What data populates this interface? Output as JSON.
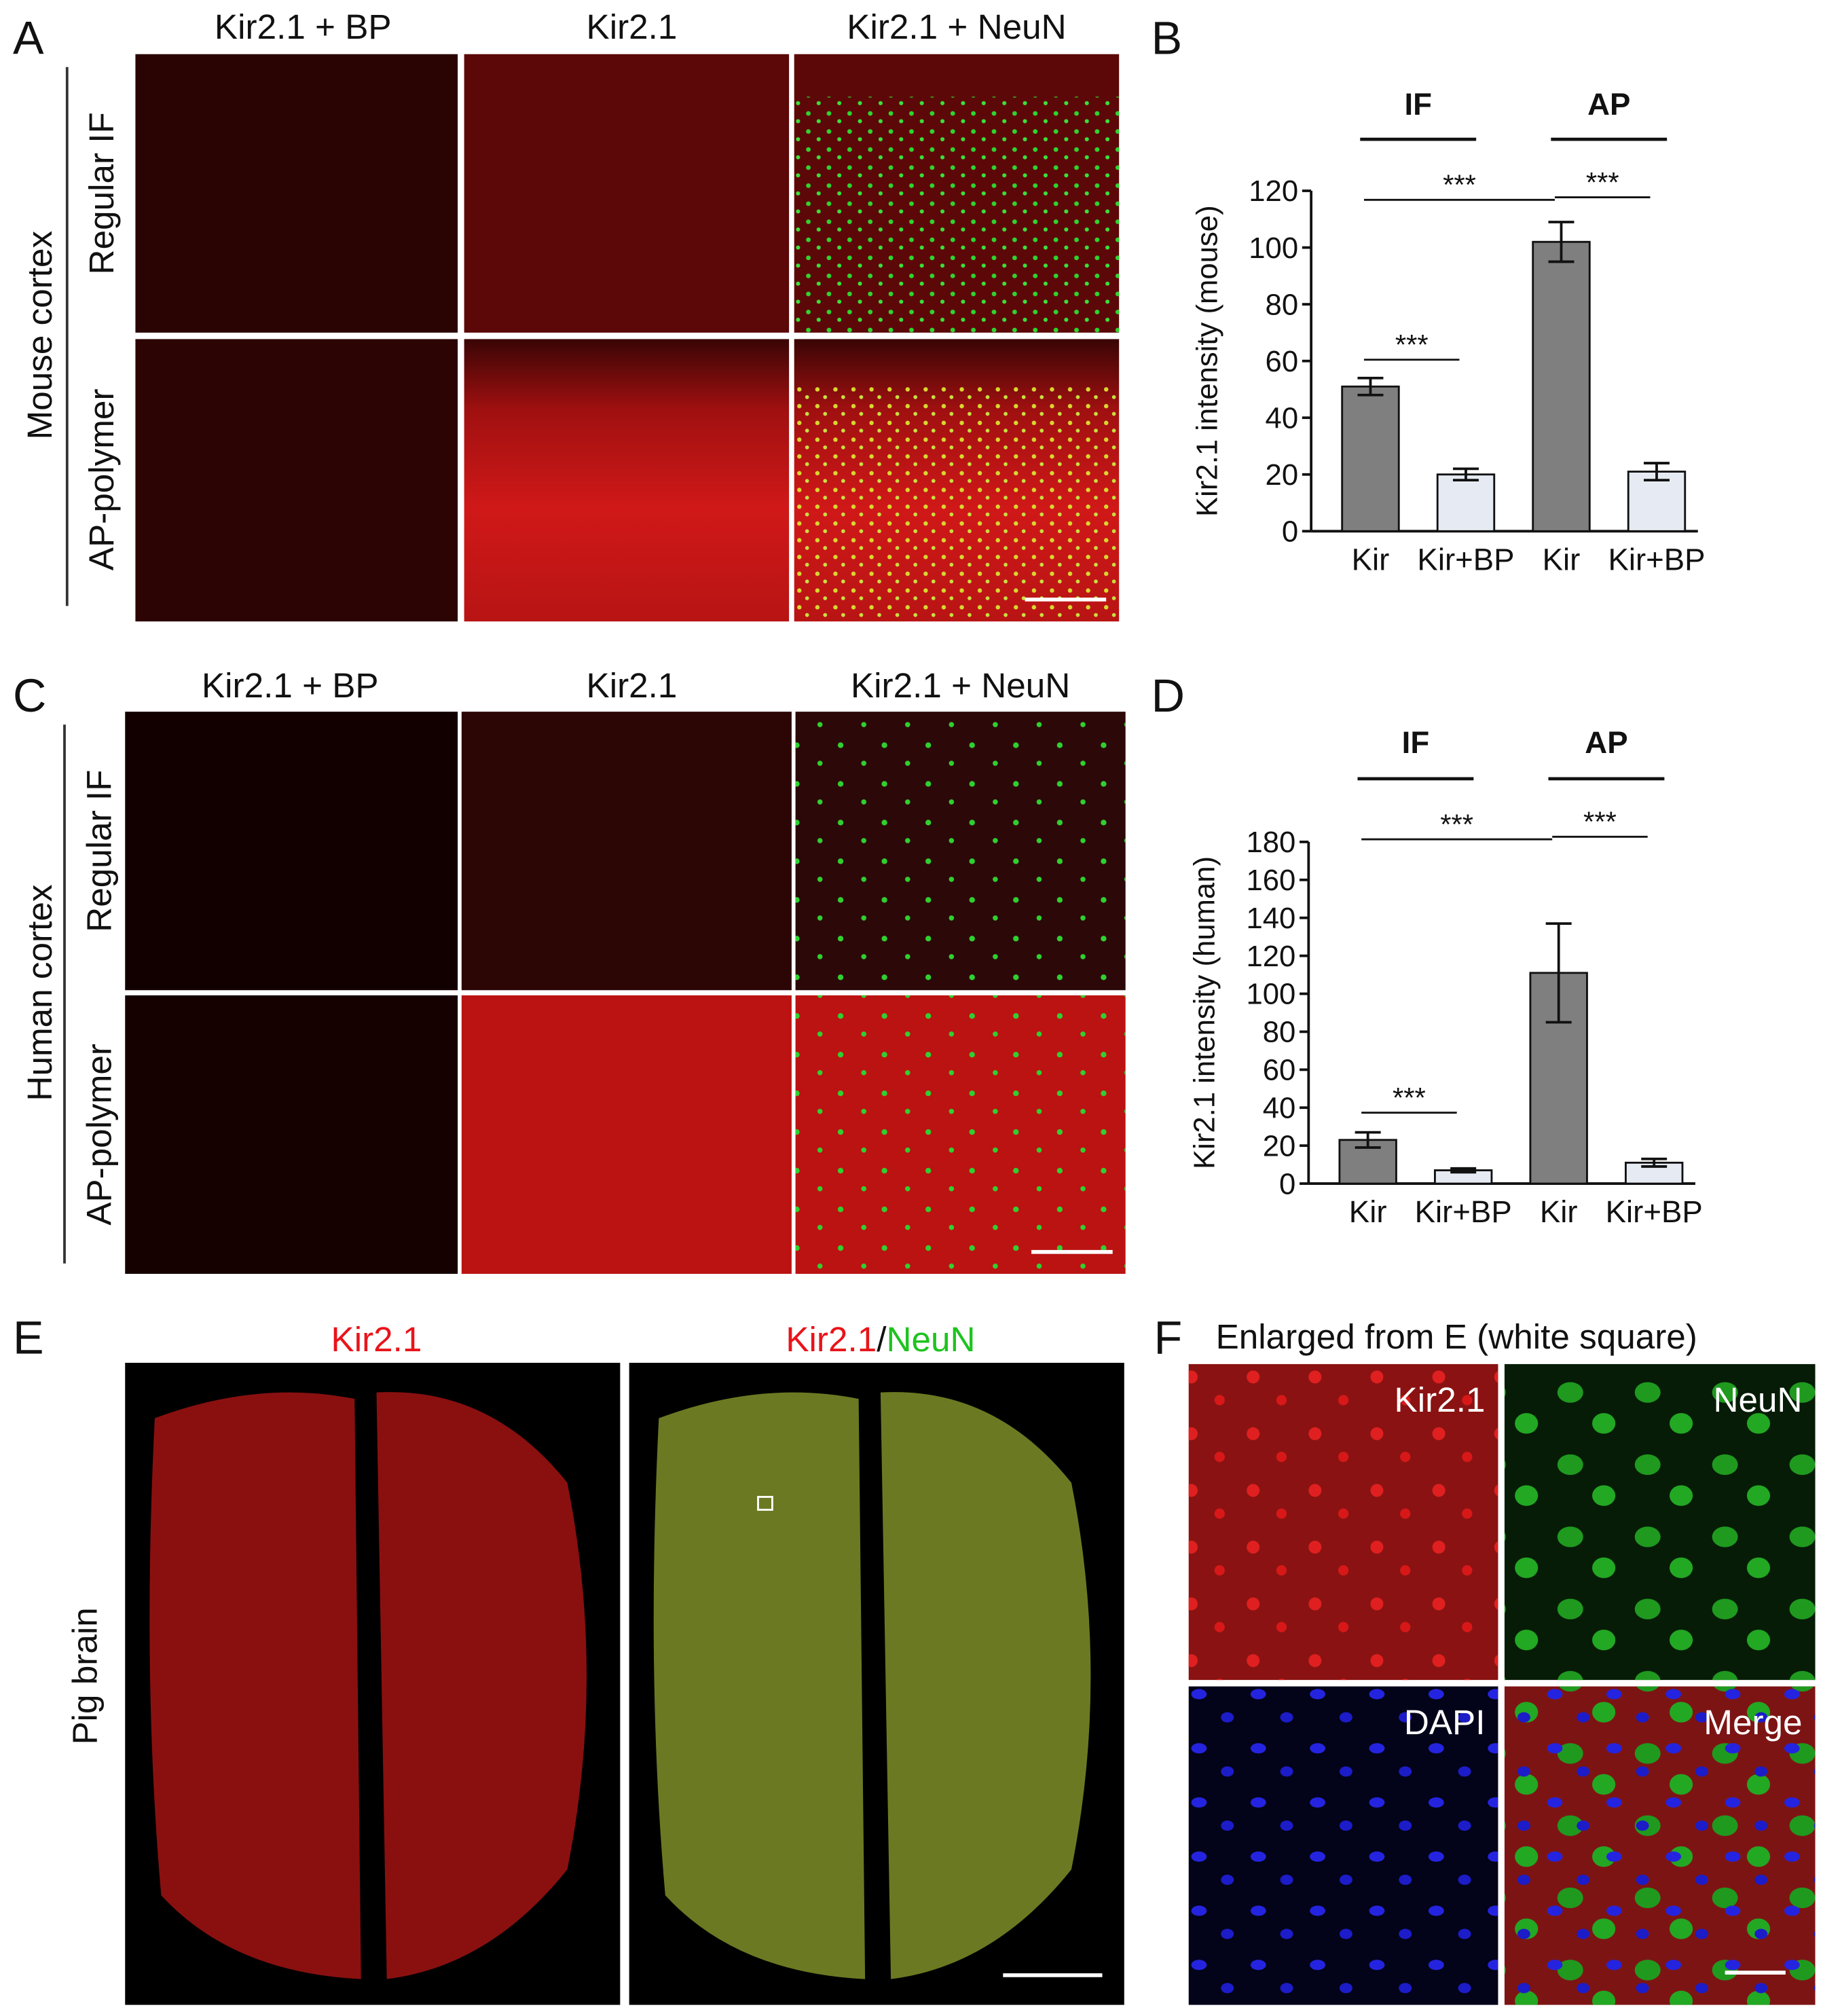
{
  "panel_A": {
    "letter": "A",
    "columns": [
      "Kir2.1 + BP",
      "Kir2.1",
      "Kir2.1 + NeuN"
    ],
    "group_label": "Mouse cortex",
    "rows": [
      "Regular IF",
      "AP-polymer"
    ]
  },
  "panel_C": {
    "letter": "C",
    "columns": [
      "Kir2.1 + BP",
      "Kir2.1",
      "Kir2.1 + NeuN"
    ],
    "group_label": "Human cortex",
    "rows": [
      "Regular IF",
      "AP-polymer"
    ]
  },
  "panel_E": {
    "letter": "E",
    "title_left": "Kir2.1",
    "title_right": [
      "Kir2.1",
      "/",
      "NeuN"
    ],
    "side_label": "Pig brain"
  },
  "panel_F": {
    "letter": "F",
    "title": "Enlarged from E (white square)",
    "labels": [
      "Kir2.1",
      "NeuN",
      "DAPI",
      "Merge"
    ]
  },
  "chart_data": [
    {
      "type": "bar",
      "panel_label": "B",
      "y_label": "Kir2.1 intensity (mouse)",
      "categories": [
        "Kir",
        "Kir+BP",
        "Kir",
        "Kir+BP"
      ],
      "values": [
        51,
        20,
        102,
        21
      ],
      "errors": [
        3,
        2,
        7,
        3
      ],
      "colors": [
        "#7f7f7f",
        "#e6ebf3",
        "#7f7f7f",
        "#e6ebf3"
      ],
      "ylim": [
        0,
        120
      ],
      "yticks": [
        0,
        20,
        40,
        60,
        80,
        100,
        120
      ],
      "groups": [
        "IF",
        "AP"
      ],
      "significance": [
        "***",
        "***",
        "***"
      ]
    },
    {
      "type": "bar",
      "panel_label": "D",
      "y_label": "Kir2.1 intensity (human)",
      "categories": [
        "Kir",
        "Kir+BP",
        "Kir",
        "Kir+BP"
      ],
      "values": [
        23,
        7,
        111,
        11
      ],
      "errors": [
        4,
        1,
        26,
        2
      ],
      "colors": [
        "#7f7f7f",
        "#e6ebf3",
        "#7f7f7f",
        "#e6ebf3"
      ],
      "ylim": [
        0,
        180
      ],
      "yticks": [
        0,
        20,
        40,
        60,
        80,
        100,
        120,
        140,
        160,
        180
      ],
      "groups": [
        "IF",
        "AP"
      ],
      "significance": [
        "***",
        "***",
        "***"
      ]
    }
  ]
}
